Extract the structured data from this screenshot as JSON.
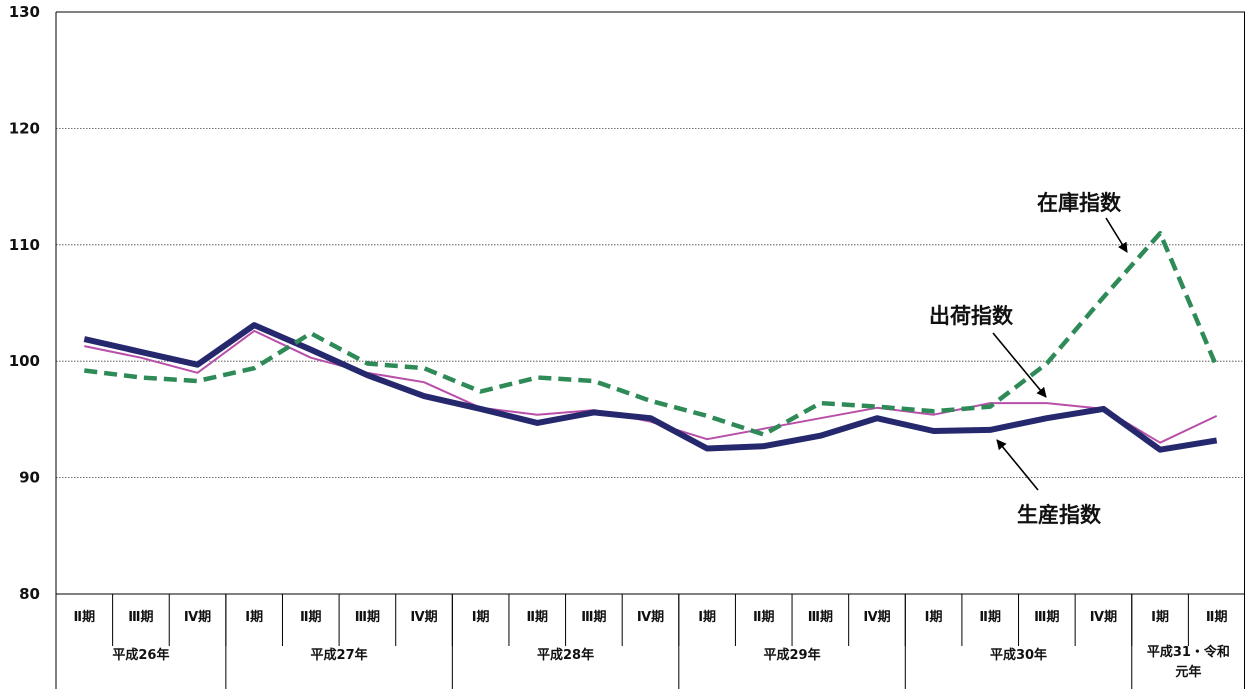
{
  "chart_data": {
    "type": "line",
    "ylim": [
      80,
      130
    ],
    "yticks": [
      80,
      90,
      100,
      110,
      120,
      130
    ],
    "grid": true,
    "quarters": [
      "Ⅱ期",
      "Ⅲ期",
      "Ⅳ期",
      "Ⅰ期",
      "Ⅱ期",
      "Ⅲ期",
      "Ⅳ期",
      "Ⅰ期",
      "Ⅱ期",
      "Ⅲ期",
      "Ⅳ期",
      "Ⅰ期",
      "Ⅱ期",
      "Ⅲ期",
      "Ⅳ期",
      "Ⅰ期",
      "Ⅱ期",
      "Ⅲ期",
      "Ⅳ期",
      "Ⅰ期",
      "Ⅱ期"
    ],
    "year_groups": [
      {
        "label": "平成26年",
        "span": 3
      },
      {
        "label": "平成27年",
        "span": 4
      },
      {
        "label": "平成28年",
        "span": 4
      },
      {
        "label": "平成29年",
        "span": 4
      },
      {
        "label": "平成30年",
        "span": 4
      },
      {
        "label": "平成31・令和元年",
        "label_lines": [
          "平成31・令和",
          "元年"
        ],
        "span": 2
      }
    ],
    "series": [
      {
        "name": "生産指数",
        "color": "#26286e",
        "style": "thick",
        "values": [
          101.9,
          100.8,
          99.7,
          103.1,
          101.0,
          98.8,
          97.0,
          95.9,
          94.7,
          95.6,
          95.1,
          92.5,
          92.7,
          93.6,
          95.1,
          94.0,
          94.1,
          95.1,
          95.9,
          92.4,
          93.2
        ]
      },
      {
        "name": "出荷指数",
        "color": "#b84fa9",
        "style": "thin",
        "values": [
          101.3,
          100.3,
          99.0,
          102.6,
          100.3,
          99.0,
          98.2,
          96.0,
          95.4,
          95.8,
          94.8,
          93.3,
          94.2,
          95.1,
          96.0,
          95.4,
          96.4,
          96.4,
          95.9,
          93.0,
          95.3
        ]
      },
      {
        "name": "在庫指数",
        "color": "#2e8b57",
        "style": "dashed",
        "values": [
          99.2,
          98.6,
          98.3,
          99.4,
          102.4,
          99.8,
          99.4,
          97.4,
          98.6,
          98.3,
          96.6,
          95.3,
          93.7,
          96.4,
          96.1,
          95.7,
          96.1,
          99.8,
          105.5,
          111.0,
          99.5
        ]
      }
    ],
    "annotations": [
      {
        "text": "在庫指数",
        "series": "在庫指数"
      },
      {
        "text": "出荷指数",
        "series": "出荷指数"
      },
      {
        "text": "生産指数",
        "series": "生産指数"
      }
    ]
  }
}
